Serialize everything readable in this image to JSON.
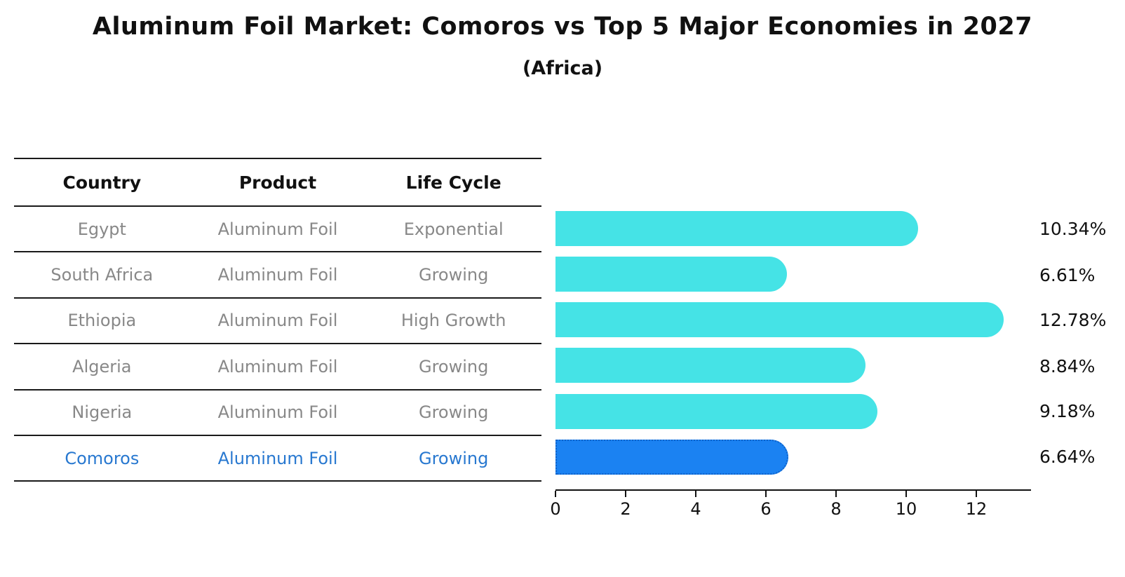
{
  "title": "Aluminum Foil Market: Comoros vs Top 5 Major Economies in 2027",
  "subtitle": "(Africa)",
  "table": {
    "headers": [
      "Country",
      "Product",
      "Life Cycle"
    ],
    "rows": [
      {
        "country": "Egypt",
        "product": "Aluminum Foil",
        "life_cycle": "Exponential",
        "highlight": false
      },
      {
        "country": "South Africa",
        "product": "Aluminum Foil",
        "life_cycle": "Growing",
        "highlight": false
      },
      {
        "country": "Ethiopia",
        "product": "Aluminum Foil",
        "life_cycle": "High Growth",
        "highlight": false
      },
      {
        "country": "Algeria",
        "product": "Aluminum Foil",
        "life_cycle": "Growing",
        "highlight": false
      },
      {
        "country": "Nigeria",
        "product": "Aluminum Foil",
        "life_cycle": "Growing",
        "highlight": false
      },
      {
        "country": "Comoros",
        "product": "Aluminum Foil",
        "life_cycle": "Growing",
        "highlight": true
      }
    ]
  },
  "chart_data": {
    "type": "bar",
    "orientation": "horizontal",
    "title": "Aluminum Foil Market: Comoros vs Top 5 Major Economies in 2027 (Africa)",
    "categories": [
      "Egypt",
      "South Africa",
      "Ethiopia",
      "Algeria",
      "Nigeria",
      "Comoros"
    ],
    "values": [
      10.34,
      6.61,
      12.78,
      8.84,
      9.18,
      6.64
    ],
    "value_labels": [
      "10.34%",
      "6.61%",
      "12.78%",
      "8.84%",
      "9.18%",
      "6.64%"
    ],
    "unit": "percent CAGR",
    "xlim": [
      0,
      13.56
    ],
    "x_ticks": [
      0,
      2,
      4,
      6,
      8,
      10,
      12
    ],
    "x_tick_labels": [
      "0",
      "2",
      "4",
      "6",
      "8",
      "10",
      "12"
    ],
    "grid": false,
    "legend": "none",
    "highlight_index": 5,
    "bar_color": "#45e3e6",
    "highlight_bar_color": "#1b82f2",
    "highlight_bar_edge_color": "#0f62c9",
    "highlight_text_color": "#2878d0",
    "table_text_color": "#888888",
    "text_color": "#111111"
  }
}
